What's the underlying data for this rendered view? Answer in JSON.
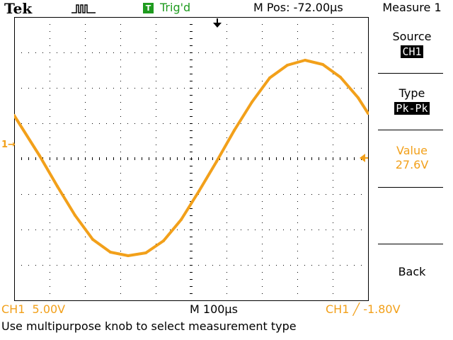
{
  "header": {
    "brand": "Tek",
    "trigger_badge": "T",
    "trigger_status": "Trig'd",
    "main_position": "M Pos: -72.00µs",
    "menu_title": "Measure 1"
  },
  "menu": {
    "source_label": "Source",
    "source_value": "CH1",
    "type_label": "Type",
    "type_value": "Pk-Pk",
    "value_label": "Value",
    "value_reading": "27.6V",
    "back_label": "Back"
  },
  "markers": {
    "channel_marker": "1"
  },
  "footer": {
    "ch1_scale": "CH1  5.00V",
    "timebase": "M 100µs",
    "trigger_readout": "CH1 ╱ -1.80V",
    "help": "Use multipurpose knob to select measurement type"
  },
  "colors": {
    "trace": "#f2a01a",
    "trigger_green": "#1f9b1f",
    "grid": "#000000"
  },
  "chart_data": {
    "type": "line",
    "title": "",
    "xlabel": "",
    "ylabel": "",
    "x_unit": "µs",
    "y_unit": "V",
    "xlim": [
      -572,
      428
    ],
    "ylim": [
      -20,
      20
    ],
    "grid": true,
    "series": [
      {
        "x": [
          -572,
          -500,
          -450,
          -400,
          -350,
          -300,
          -250,
          -200,
          -150,
          -100,
          -50,
          0,
          50,
          100,
          150,
          200,
          250,
          300,
          350,
          400,
          428
        ],
        "values": [
          6.1,
          0.4,
          -3.9,
          -8.0,
          -11.4,
          -13.2,
          -13.7,
          -13.3,
          -11.6,
          -8.6,
          -4.6,
          -0.4,
          4.0,
          8.0,
          11.4,
          13.2,
          13.9,
          13.3,
          11.5,
          8.6,
          6.4
        ]
      }
    ]
  }
}
